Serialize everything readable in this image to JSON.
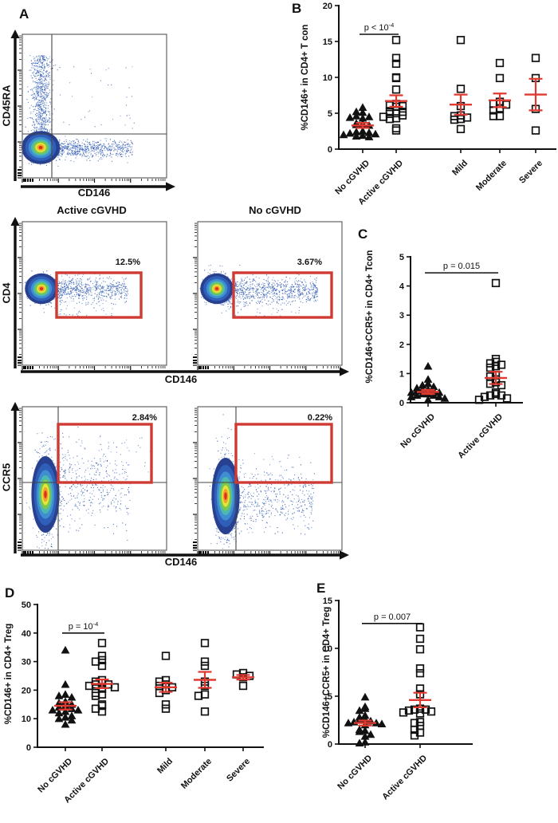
{
  "panel_labels": {
    "a": "A",
    "b": "B",
    "c": "C",
    "d": "D",
    "e": "E"
  },
  "flow": {
    "xlabel": "CD146",
    "row1": {
      "ylabel": "CD45RA"
    },
    "row2": {
      "ylabel": "CD4",
      "title_left": "Active cGVHD",
      "title_right": "No cGVHD",
      "gate_left": "12.5%",
      "gate_right": "3.67%"
    },
    "row3": {
      "ylabel": "CCR5",
      "gate_left": "2.84%",
      "gate_right": "0.22%"
    }
  },
  "colors": {
    "error_bar": "#e03a30",
    "gate": "#cf3a32",
    "marker": "#111111"
  },
  "chart_data": [
    {
      "panel": "B",
      "type": "scatter",
      "ylabel": "%CD146+ in CD4+ T con",
      "ylim": [
        0,
        20
      ],
      "yticks": [
        0,
        5,
        10,
        15,
        20
      ],
      "categories": [
        "No cGVHD",
        "Active cGVHD",
        "Mild",
        "Moderate",
        "Severe"
      ],
      "series": [
        {
          "name": "No cGVHD",
          "marker": "triangle",
          "values": [
            5.8,
            5.2,
            5.1,
            4.6,
            4.5,
            4.4,
            4.3,
            3.6,
            3.5,
            3.4,
            3.3,
            2.5,
            2.4,
            2.3,
            2.2,
            2.1,
            2.0,
            1.9,
            1.8,
            1.7
          ],
          "mean": 3.3,
          "sem": 0.35
        },
        {
          "name": "Active cGVHD",
          "marker": "square",
          "values": [
            15.2,
            12.7,
            11.9,
            10.0,
            9.9,
            8.3,
            6.3,
            6.1,
            6.0,
            5.9,
            5.3,
            5.2,
            5.0,
            4.9,
            4.7,
            4.5,
            4.3,
            4.2,
            2.9,
            2.6
          ],
          "mean": 6.7,
          "sem": 0.8
        },
        {
          "name": "Mild",
          "marker": "square",
          "values": [
            15.2,
            8.4,
            6.0,
            4.7,
            4.6,
            4.4,
            4.2,
            4.1,
            2.8
          ],
          "mean": 6.2,
          "sem": 1.4
        },
        {
          "name": "Moderate",
          "marker": "square",
          "values": [
            12.0,
            9.9,
            6.6,
            6.3,
            6.2,
            5.7,
            5.4,
            4.6,
            4.6
          ],
          "mean": 6.8,
          "sem": 0.95
        },
        {
          "name": "Severe",
          "marker": "square",
          "values": [
            12.7,
            9.9,
            5.6,
            2.6
          ],
          "mean": 7.6,
          "sem": 2.2
        }
      ],
      "significance": {
        "groups": [
          0,
          1
        ],
        "label": "p < 10",
        "exponent": "-4",
        "y": 16
      }
    },
    {
      "panel": "C",
      "type": "scatter",
      "ylabel": "%CD146+CCR5+ in CD4+ Tcon",
      "ylim": [
        0,
        5
      ],
      "yticks": [
        0,
        1,
        2,
        3,
        4,
        5
      ],
      "categories": [
        "No cGVHD",
        "Active cGVHD"
      ],
      "series": [
        {
          "name": "No cGVHD",
          "marker": "triangle",
          "values": [
            1.25,
            0.8,
            0.65,
            0.6,
            0.55,
            0.5,
            0.45,
            0.45,
            0.4,
            0.4,
            0.35,
            0.35,
            0.3,
            0.3,
            0.25,
            0.25,
            0.2,
            0.2,
            0.15,
            0.1
          ],
          "mean": 0.37,
          "sem": 0.07
        },
        {
          "name": "Active cGVHD",
          "marker": "square",
          "values": [
            4.1,
            1.5,
            1.4,
            1.35,
            1.3,
            1.25,
            1.2,
            0.95,
            0.9,
            0.8,
            0.7,
            0.65,
            0.6,
            0.35,
            0.3,
            0.25,
            0.25,
            0.2,
            0.15,
            0.1
          ],
          "mean": 0.85,
          "sem": 0.21
        }
      ],
      "significance": {
        "groups": [
          0,
          1
        ],
        "label": "p = 0.015",
        "y": 4.45
      }
    },
    {
      "panel": "D",
      "type": "scatter",
      "ylabel": "%CD146+ in CD4+ Treg",
      "ylim": [
        0,
        50
      ],
      "yticks": [
        0,
        10,
        20,
        30,
        40,
        50
      ],
      "categories": [
        "No cGVHD",
        "Active cGVHD",
        "Mild",
        "Moderate",
        "Severe"
      ],
      "series": [
        {
          "name": "No cGVHD",
          "marker": "triangle",
          "values": [
            34,
            22,
            18.5,
            18,
            17.5,
            16,
            15.5,
            15,
            14.5,
            14,
            13.5,
            13,
            13,
            12.5,
            12,
            11,
            10.5,
            10,
            9.5,
            8
          ],
          "mean": 14.5,
          "sem": 1.3
        },
        {
          "name": "Active cGVHD",
          "marker": "square",
          "values": [
            36.5,
            32,
            30.5,
            30,
            28.5,
            23.5,
            23,
            22.5,
            22,
            22,
            21.5,
            21,
            20.5,
            19,
            18.5,
            18,
            15,
            14.5,
            13.5,
            12.5
          ],
          "mean": 22.2,
          "sem": 1.5
        },
        {
          "name": "Mild",
          "marker": "square",
          "values": [
            32,
            23.5,
            23,
            22,
            21.5,
            21,
            20,
            19,
            15,
            13.5
          ],
          "mean": 21.0,
          "sem": 1.6
        },
        {
          "name": "Moderate",
          "marker": "square",
          "values": [
            36.5,
            30,
            28.5,
            23,
            21.5,
            18.5,
            18,
            12.5
          ],
          "mean": 23.6,
          "sem": 2.8
        },
        {
          "name": "Severe",
          "marker": "square",
          "values": [
            26,
            25.5,
            25,
            24.5,
            21.5
          ],
          "mean": 24.5,
          "sem": 0.8
        }
      ],
      "significance": {
        "groups": [
          0,
          1
        ],
        "label": "p = 10",
        "exponent": "-4",
        "y": 40
      }
    },
    {
      "panel": "E",
      "type": "scatter",
      "ylabel": "%CD146+CCR5+ in CD4+ Treg",
      "ylim": [
        0,
        15
      ],
      "yticks": [
        0,
        5,
        10,
        15
      ],
      "categories": [
        "No cGVHD",
        "Active cGVHD"
      ],
      "series": [
        {
          "name": "No cGVHD",
          "marker": "triangle",
          "values": [
            4.9,
            3.9,
            3.7,
            3.5,
            3.0,
            2.8,
            2.6,
            2.5,
            2.4,
            2.3,
            2.2,
            2.2,
            2.1,
            2.0,
            1.5,
            1.4,
            1.3,
            1.0,
            0.8,
            0.2,
            0.1
          ],
          "mean": 2.2,
          "sem": 0.26
        },
        {
          "name": "Active cGVHD",
          "marker": "square",
          "values": [
            12.2,
            11.0,
            9.9,
            7.9,
            7.4,
            5.8,
            5.2,
            3.7,
            3.6,
            3.6,
            3.5,
            3.4,
            3.3,
            3.2,
            2.3,
            2.2,
            1.9,
            1.5,
            1.2,
            0.9
          ],
          "mean": 4.6,
          "sem": 0.76
        }
      ],
      "significance": {
        "groups": [
          0,
          1
        ],
        "label": "p = 0.007",
        "y": 12.6
      }
    }
  ]
}
